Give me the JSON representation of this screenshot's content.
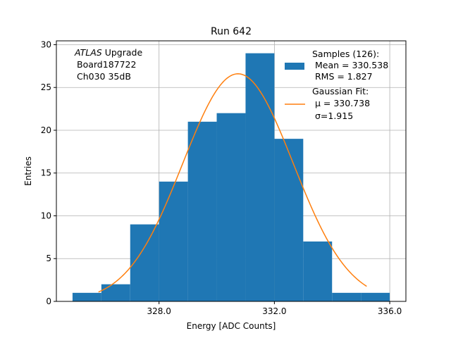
{
  "chart_data": {
    "type": "bar",
    "title": "Run 642",
    "xlabel": "Energy [ADC Counts]",
    "ylabel": "Entries",
    "xlim": [
      324.44,
      336.56
    ],
    "ylim": [
      0,
      30.45
    ],
    "grid": true,
    "bin_edges": [
      325,
      326,
      327,
      328,
      329,
      330,
      331,
      332,
      333,
      334,
      335,
      336
    ],
    "values": [
      1,
      2,
      9,
      14,
      21,
      22,
      29,
      19,
      7,
      1,
      1
    ],
    "xticks": [
      328.0,
      332.0,
      336.0
    ],
    "xtick_labels": [
      "328.0",
      "332.0",
      "336.0"
    ],
    "yticks": [
      0,
      5,
      10,
      15,
      20,
      25,
      30
    ],
    "ytick_labels": [
      "0",
      "5",
      "10",
      "15",
      "20",
      "25",
      "30"
    ],
    "fit": {
      "mu": 330.738,
      "sigma": 1.915,
      "amplitude": 26.6,
      "x_range": [
        325.9,
        335.2
      ]
    },
    "annotation": [
      "ATLAS",
      " Upgrade",
      "Board187722",
      "Ch030 35dB"
    ],
    "legend": {
      "placement": "top-right",
      "entries": [
        {
          "lines": [
            "Samples (126):",
            " Mean = 330.538",
            " RMS = 1.827"
          ],
          "color": "#1f77b4"
        },
        {
          "lines": [
            "Gaussian Fit:",
            " μ = 330.738",
            " σ=1.915"
          ],
          "color": "#ff7f0e"
        }
      ]
    }
  }
}
